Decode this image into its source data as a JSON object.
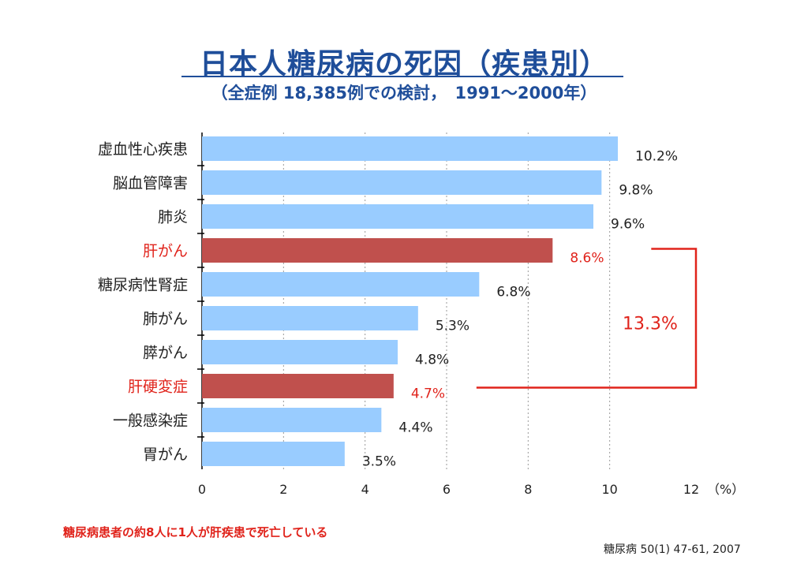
{
  "title": "日本人糖尿病の死因（疾患別）",
  "subtitle": "（全症例 18,385例での検討，　1991～2000年）",
  "footnote": "糖尿病患者の約8人に1人が肝疾患で死亡している",
  "citation": "糖尿病 50(1) 47-61, 2007",
  "bracket_label": "13.3%",
  "colors": {
    "bar": "#99ccff",
    "highlight": "#c0504d",
    "highlight_text": "#e0231b",
    "bracket": "#e0231b"
  },
  "chart_data": {
    "type": "bar",
    "orientation": "horizontal",
    "categories": [
      "虚血性心疾患",
      "脳血管障害",
      "肺炎",
      "肝がん",
      "糖尿病性腎症",
      "肺がん",
      "膵がん",
      "肝硬変症",
      "一般感染症",
      "胃がん"
    ],
    "values": [
      10.2,
      9.8,
      9.6,
      8.6,
      6.8,
      5.3,
      4.8,
      4.7,
      4.4,
      3.5
    ],
    "value_labels": [
      "10.2%",
      "9.8%",
      "9.6%",
      "8.6%",
      "6.8%",
      "5.3%",
      "4.8%",
      "4.7%",
      "4.4%",
      "3.5%"
    ],
    "highlighted": [
      false,
      false,
      false,
      true,
      false,
      false,
      false,
      true,
      false,
      false
    ],
    "x_ticks": [
      "0",
      "2",
      "4",
      "6",
      "8",
      "10",
      "12"
    ],
    "xlim": [
      0,
      12
    ],
    "xunit": "（%）",
    "grid": "vertical dotted"
  }
}
